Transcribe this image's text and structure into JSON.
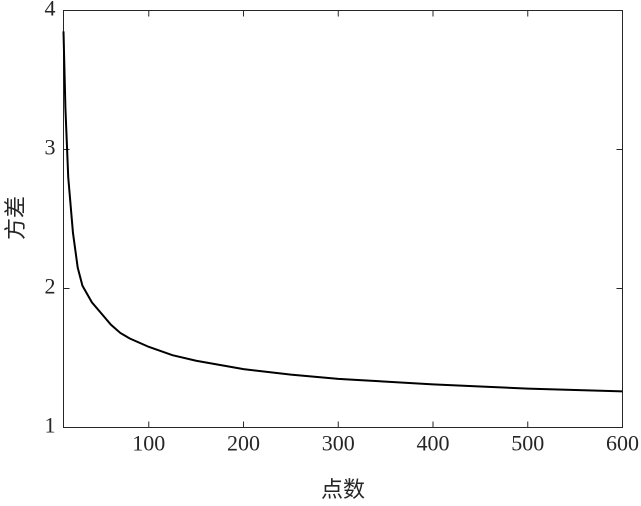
{
  "chart_data": {
    "type": "line",
    "x_label": "点数",
    "y_label": "方差",
    "x": [
      10,
      12,
      15,
      20,
      25,
      30,
      40,
      50,
      60,
      70,
      80,
      100,
      125,
      150,
      200,
      250,
      300,
      350,
      400,
      450,
      500,
      550,
      600
    ],
    "series": [
      {
        "color": "#000000",
        "values": [
          3.85,
          3.3,
          2.8,
          2.4,
          2.15,
          2.02,
          1.9,
          1.82,
          1.74,
          1.68,
          1.64,
          1.58,
          1.52,
          1.48,
          1.42,
          1.38,
          1.35,
          1.33,
          1.31,
          1.295,
          1.28,
          1.27,
          1.26
        ]
      }
    ],
    "xlim": [
      10,
      600
    ],
    "xticks": [
      100,
      200,
      300,
      400,
      500,
      600
    ],
    "ylim": [
      1,
      4
    ],
    "yticks": [
      1,
      2,
      3,
      4
    ]
  }
}
